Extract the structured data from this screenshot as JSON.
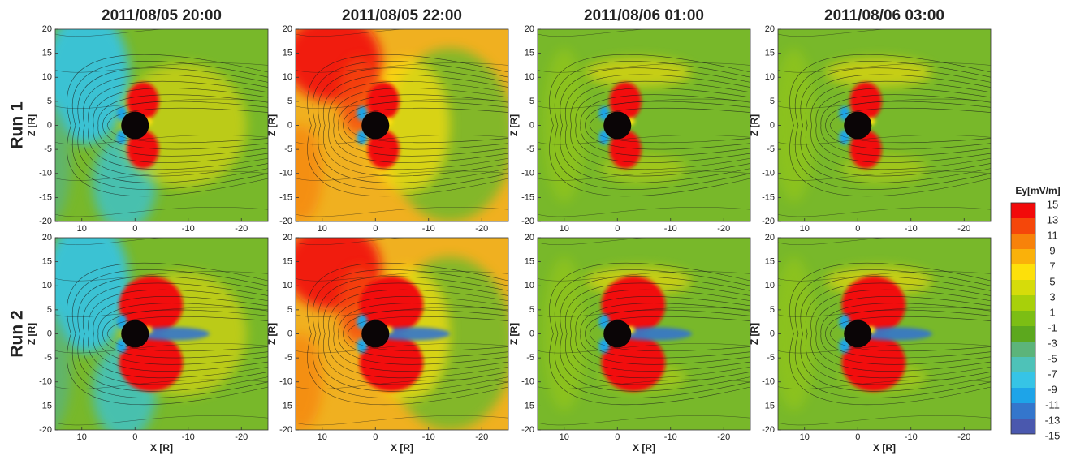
{
  "columns": [
    "2011/08/05  20:00",
    "2011/08/05  22:00",
    "2011/08/06  01:00",
    "2011/08/06  03:00"
  ],
  "rows": [
    "Run 1",
    "Run 2"
  ],
  "x_axis": {
    "label": "X [R]",
    "range": [
      15,
      -25
    ],
    "ticks": [
      10,
      0,
      -10,
      -20
    ]
  },
  "y_axis": {
    "label": "Z [R]",
    "range": [
      -20,
      20
    ],
    "ticks": [
      20,
      15,
      10,
      5,
      0,
      -5,
      -10,
      -15,
      -20
    ]
  },
  "colorbar": {
    "title": "Ey[mV/m]",
    "levels": [
      15,
      13,
      11,
      9,
      7,
      5,
      3,
      1,
      -1,
      -3,
      -5,
      -7,
      -9,
      -11,
      -13,
      -15
    ],
    "colors": [
      "#f20a0a",
      "#f5470a",
      "#f7820a",
      "#fab10a",
      "#fde00a",
      "#d6dc0a",
      "#a8d00a",
      "#7cbe14",
      "#5ca81e",
      "#5cb47a",
      "#4ec2b8",
      "#36c4e6",
      "#1ea4e8",
      "#3476cc",
      "#4a58ae"
    ]
  }
}
